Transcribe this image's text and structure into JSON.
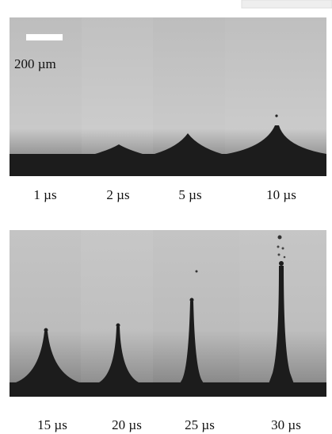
{
  "scale_bar": {
    "label": "200 µm"
  },
  "frames": [
    {
      "label": "1 µs"
    },
    {
      "label": "2 µs"
    },
    {
      "label": "5 µs"
    },
    {
      "label": "10 µs"
    },
    {
      "label": "15 µs"
    },
    {
      "label": "20 µs"
    },
    {
      "label": "25 µs"
    },
    {
      "label": "30 µs"
    }
  ]
}
